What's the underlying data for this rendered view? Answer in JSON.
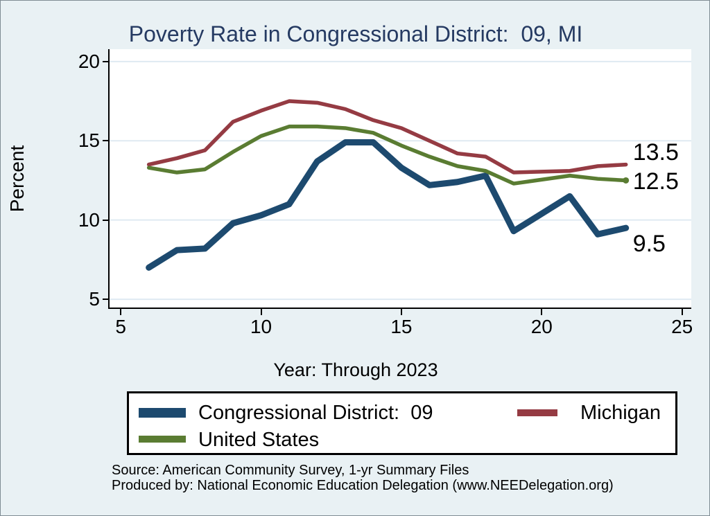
{
  "title": "Poverty Rate in Congressional District:  09, MI",
  "y_axis": {
    "label": "Percent",
    "ticks": [
      "20",
      "15",
      "10",
      "5"
    ]
  },
  "x_axis": {
    "label": "Year: Through 2023",
    "ticks": [
      "5",
      "10",
      "15",
      "20",
      "25"
    ]
  },
  "legend": {
    "items": [
      {
        "label": "Congressional District:  09",
        "series": 0
      },
      {
        "label": "Michigan",
        "series": 1
      },
      {
        "label": "United States",
        "series": 2
      }
    ]
  },
  "footnotes": {
    "line1": "Source: American Community Survey, 1-yr Summary Files",
    "line2": "Produced by: National Economic Education Delegation (www.NEEDelegation.org)"
  },
  "chart_data": {
    "type": "line",
    "title": "Poverty Rate in Congressional District:  09, MI",
    "xlabel": "Year: Through 2023",
    "ylabel": "Percent",
    "x": [
      6,
      7,
      8,
      9,
      10,
      11,
      12,
      13,
      14,
      15,
      16,
      17,
      18,
      19,
      21,
      22,
      23
    ],
    "series": [
      {
        "name": "Congressional District:  09",
        "color": "#1d4a6f",
        "line_width": 9,
        "values": [
          7.0,
          8.1,
          8.2,
          9.8,
          10.3,
          11.0,
          13.7,
          14.9,
          14.9,
          13.3,
          12.2,
          12.4,
          12.8,
          9.3,
          11.5,
          9.1,
          9.5
        ],
        "end_label": "9.5",
        "end_label_dy": 23,
        "end_marker": false
      },
      {
        "name": "Michigan",
        "color": "#953b43",
        "line_width": 5.5,
        "values": [
          13.5,
          13.9,
          14.4,
          16.2,
          16.9,
          17.5,
          17.4,
          17.0,
          16.3,
          15.8,
          15.0,
          14.2,
          14.0,
          13.0,
          13.1,
          13.4,
          13.5
        ],
        "end_label": "13.5",
        "end_label_dy": -18,
        "end_marker": false
      },
      {
        "name": "United States",
        "color": "#5a7c32",
        "line_width": 5.5,
        "values": [
          13.3,
          13.0,
          13.2,
          14.3,
          15.3,
          15.9,
          15.9,
          15.8,
          15.5,
          14.7,
          14.0,
          13.4,
          13.1,
          12.3,
          12.8,
          12.6,
          12.5
        ],
        "end_label": "12.5",
        "end_label_dy": 2,
        "end_marker": true
      }
    ],
    "xlim": [
      4.6,
      25.33
    ],
    "ylim": [
      4.48,
      20.78
    ],
    "xticks": [
      5,
      10,
      15,
      20,
      25
    ],
    "yticks": [
      5,
      10,
      15,
      20
    ],
    "grid": "horizontal-only",
    "grid_color": "#dfeaf2",
    "plot_background": "#ffffff",
    "page_background": "#e9f1f4",
    "legend_position": "bottom-box"
  }
}
